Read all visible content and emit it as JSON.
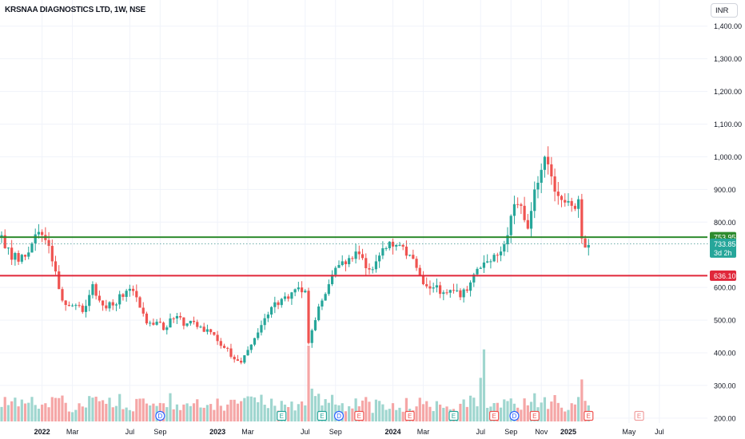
{
  "header": {
    "title": "KRSNAA DIAGNOSTICS LTD, 1W, NSE",
    "currency": "INR"
  },
  "colors": {
    "up": "#26a69a",
    "down": "#ef5350",
    "vol_up": "#9fd6cf",
    "vol_down": "#f5a6a6",
    "resistance": "#2e8b2e",
    "support": "#e0273a",
    "grid": "#f0f3fa",
    "axis_text": "#131722"
  },
  "chart_data": {
    "type": "candlestick",
    "ylim": [
      185,
      1480
    ],
    "y_ticks": [
      {
        "value": 1400,
        "label": "1,400.00"
      },
      {
        "value": 1300,
        "label": "1,300.00"
      },
      {
        "value": 1200,
        "label": "1,200.00"
      },
      {
        "value": 1100,
        "label": "1,100.00"
      },
      {
        "value": 1000,
        "label": "1,000.00"
      },
      {
        "value": 900,
        "label": "900.00"
      },
      {
        "value": 800,
        "label": "800.00"
      },
      {
        "value": 600,
        "label": "600.00"
      },
      {
        "value": 500,
        "label": "500.00"
      },
      {
        "value": 400,
        "label": "400.00"
      },
      {
        "value": 300,
        "label": "300.00"
      },
      {
        "value": 200,
        "label": "200.00"
      }
    ],
    "x_ticks": [
      {
        "week": 12,
        "label": "2022"
      },
      {
        "week": 21,
        "label": "Mar"
      },
      {
        "week": 38,
        "label": "Jul"
      },
      {
        "week": 47,
        "label": "Sep"
      },
      {
        "week": 64,
        "label": "2023"
      },
      {
        "week": 73,
        "label": "Mar"
      },
      {
        "week": 90,
        "label": "Jul"
      },
      {
        "week": 99,
        "label": "Sep"
      },
      {
        "week": 116,
        "label": "2024"
      },
      {
        "week": 125,
        "label": "Mar"
      },
      {
        "week": 142,
        "label": "Jul"
      },
      {
        "week": 151,
        "label": "Sep"
      },
      {
        "week": 160,
        "label": "Nov"
      },
      {
        "week": 168,
        "label": "2025"
      },
      {
        "week": 186,
        "label": "May"
      },
      {
        "week": 195,
        "label": "Jul"
      }
    ],
    "lines": [
      {
        "name": "resistance",
        "value": 753.95,
        "label": "753.95"
      },
      {
        "name": "support",
        "value": 636.1,
        "label": "636.10"
      }
    ],
    "last_price": {
      "value": 733.85,
      "label": "733.85",
      "countdown": "3d 2h"
    },
    "anchors": [
      [
        0,
        760
      ],
      [
        3,
        685
      ],
      [
        6,
        700
      ],
      [
        9,
        735
      ],
      [
        11,
        770
      ],
      [
        13,
        745
      ],
      [
        15,
        680
      ],
      [
        18,
        560
      ],
      [
        21,
        545
      ],
      [
        24,
        525
      ],
      [
        27,
        610
      ],
      [
        30,
        545
      ],
      [
        33,
        545
      ],
      [
        37,
        590
      ],
      [
        40,
        570
      ],
      [
        43,
        490
      ],
      [
        46,
        495
      ],
      [
        48,
        470
      ],
      [
        51,
        505
      ],
      [
        55,
        490
      ],
      [
        59,
        480
      ],
      [
        63,
        455
      ],
      [
        66,
        415
      ],
      [
        69,
        380
      ],
      [
        71,
        370
      ],
      [
        74,
        425
      ],
      [
        77,
        485
      ],
      [
        80,
        540
      ],
      [
        83,
        565
      ],
      [
        86,
        585
      ],
      [
        88,
        600
      ],
      [
        90,
        590
      ],
      [
        91,
        430
      ],
      [
        93,
        500
      ],
      [
        95,
        560
      ],
      [
        97,
        610
      ],
      [
        99,
        660
      ],
      [
        101,
        680
      ],
      [
        103,
        690
      ],
      [
        105,
        710
      ],
      [
        107,
        690
      ],
      [
        109,
        655
      ],
      [
        111,
        680
      ],
      [
        113,
        720
      ],
      [
        115,
        740
      ],
      [
        117,
        730
      ],
      [
        119,
        725
      ],
      [
        121,
        700
      ],
      [
        123,
        660
      ],
      [
        125,
        610
      ],
      [
        128,
        600
      ],
      [
        131,
        585
      ],
      [
        134,
        590
      ],
      [
        136,
        570
      ],
      [
        138,
        590
      ],
      [
        140,
        640
      ],
      [
        142,
        660
      ],
      [
        144,
        680
      ],
      [
        146,
        700
      ],
      [
        148,
        710
      ],
      [
        150,
        760
      ],
      [
        152,
        855
      ],
      [
        154,
        850
      ],
      [
        156,
        780
      ],
      [
        158,
        900
      ],
      [
        160,
        960
      ],
      [
        161,
        1000
      ],
      [
        163,
        940
      ],
      [
        165,
        880
      ],
      [
        167,
        860
      ],
      [
        169,
        850
      ],
      [
        171,
        870
      ],
      [
        172,
        750
      ],
      [
        174,
        730
      ]
    ],
    "volume_max": 400,
    "events": [
      {
        "week": 47,
        "label": "D",
        "kind": "dividend"
      },
      {
        "week": 83,
        "label": "E",
        "kind": "earnings-past"
      },
      {
        "week": 95,
        "label": "E",
        "kind": "earnings-past"
      },
      {
        "week": 100,
        "label": "D",
        "kind": "dividend"
      },
      {
        "week": 106,
        "label": "E",
        "kind": "earnings-miss"
      },
      {
        "week": 121,
        "label": "E",
        "kind": "earnings-miss"
      },
      {
        "week": 134,
        "label": "E",
        "kind": "earnings-past"
      },
      {
        "week": 146,
        "label": "E",
        "kind": "earnings-miss"
      },
      {
        "week": 152,
        "label": "D",
        "kind": "dividend"
      },
      {
        "week": 158,
        "label": "E",
        "kind": "earnings-miss"
      },
      {
        "week": 174,
        "label": "E",
        "kind": "earnings-miss"
      },
      {
        "week": 189,
        "label": "E",
        "kind": "earnings-future"
      }
    ]
  }
}
